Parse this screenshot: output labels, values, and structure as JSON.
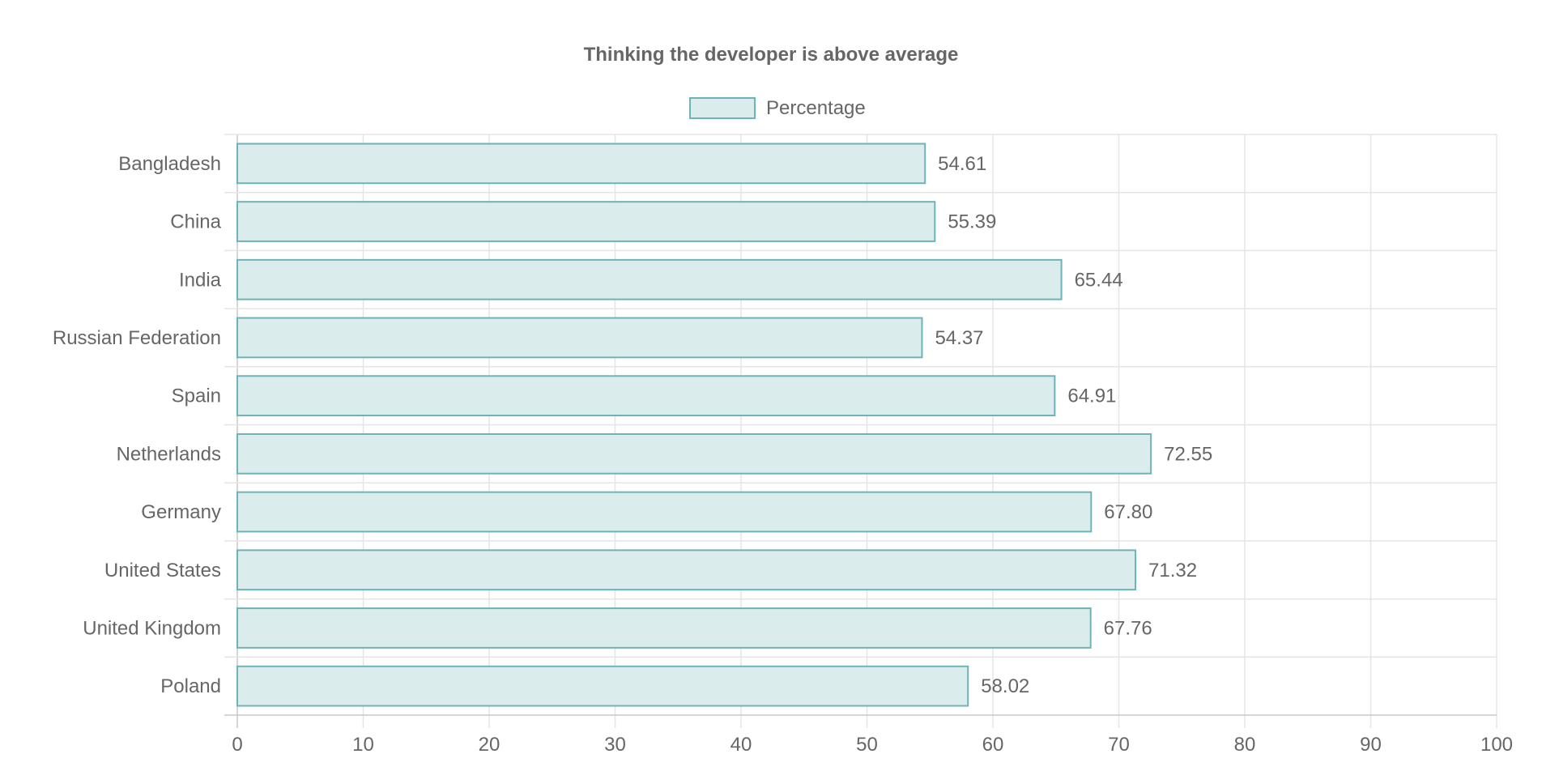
{
  "chart_data": {
    "type": "bar",
    "orientation": "horizontal",
    "title": "Thinking the developer is above average",
    "legend": {
      "position": "top",
      "entries": [
        "Percentage"
      ]
    },
    "categories": [
      "Bangladesh",
      "China",
      "India",
      "Russian Federation",
      "Spain",
      "Netherlands",
      "Germany",
      "United States",
      "United Kingdom",
      "Poland"
    ],
    "series": [
      {
        "name": "Percentage",
        "values": [
          54.61,
          55.39,
          65.44,
          54.37,
          64.91,
          72.55,
          67.8,
          71.32,
          67.76,
          58.02
        ],
        "value_labels": [
          "54.61",
          "55.39",
          "65.44",
          "54.37",
          "64.91",
          "72.55",
          "67.80",
          "71.32",
          "67.76",
          "58.02"
        ]
      }
    ],
    "xlim": [
      0,
      100
    ],
    "x_ticks": [
      "0",
      "10",
      "20",
      "30",
      "40",
      "50",
      "60",
      "70",
      "80",
      "90",
      "100"
    ],
    "grid": true,
    "colors": {
      "bar_fill": "#dbecec",
      "bar_stroke": "#6fb3b8",
      "text": "#666666",
      "grid": "#e5e5e5"
    }
  }
}
